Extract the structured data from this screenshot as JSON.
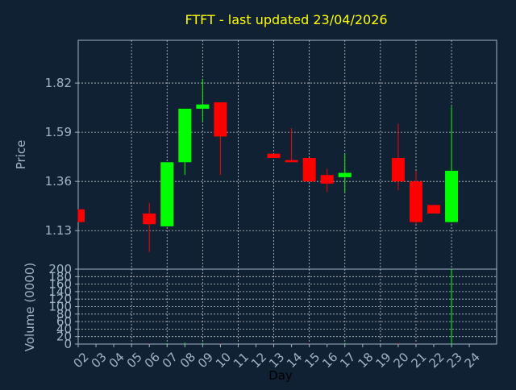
{
  "chart_data": {
    "type": "candlestick",
    "title": "FTFT - last updated 23/04/2026",
    "title_color": "#ffff00",
    "background": "#0f2133",
    "axis_color": "#a0b4c8",
    "grid_color": "#ffffff",
    "up_color": "#00ff00",
    "down_color": "#ff0000",
    "xlabel": "Day",
    "price_panel": {
      "ylabel": "Price",
      "ylim": [
        0.95,
        2.02
      ],
      "ticks": [
        1.13,
        1.36,
        1.59,
        1.82
      ],
      "tick_labels": [
        "1.13",
        "1.36",
        "1.59",
        "1.82"
      ]
    },
    "volume_panel": {
      "ylabel": "Volume (0000)",
      "ylim": [
        0,
        200
      ],
      "ticks": [
        0,
        20,
        40,
        60,
        80,
        100,
        120,
        140,
        160,
        180,
        200
      ],
      "tick_labels": [
        "0",
        "20",
        "40",
        "60",
        "80",
        "100",
        "120",
        "140",
        "160",
        "180",
        "200"
      ]
    },
    "x_ticks": [
      "02",
      "03",
      "04",
      "05",
      "06",
      "07",
      "08",
      "09",
      "10",
      "11",
      "12",
      "13",
      "14",
      "15",
      "16",
      "17",
      "18",
      "19",
      "20",
      "21",
      "22",
      "23",
      "24"
    ],
    "x_grid_days": [
      "05",
      "07",
      "09",
      "11",
      "13",
      "15",
      "17",
      "19",
      "21",
      "23"
    ],
    "candles": [
      {
        "day": "02",
        "open": 1.23,
        "high": 1.23,
        "low": 1.17,
        "close": 1.17,
        "volume": 1
      },
      {
        "day": "06",
        "open": 1.21,
        "high": 1.26,
        "low": 1.03,
        "close": 1.16,
        "volume": 2
      },
      {
        "day": "07",
        "open": 1.15,
        "high": 1.45,
        "low": 1.15,
        "close": 1.45,
        "volume": 2
      },
      {
        "day": "08",
        "open": 1.45,
        "high": 1.7,
        "low": 1.39,
        "close": 1.7,
        "volume": 4
      },
      {
        "day": "09",
        "open": 1.7,
        "high": 1.84,
        "low": 1.64,
        "close": 1.72,
        "volume": 3
      },
      {
        "day": "10",
        "open": 1.73,
        "high": 1.73,
        "low": 1.39,
        "close": 1.57,
        "volume": 2
      },
      {
        "day": "13",
        "open": 1.49,
        "high": 1.49,
        "low": 1.47,
        "close": 1.47,
        "volume": 1
      },
      {
        "day": "14",
        "open": 1.46,
        "high": 1.61,
        "low": 1.45,
        "close": 1.45,
        "volume": 1
      },
      {
        "day": "15",
        "open": 1.47,
        "high": 1.47,
        "low": 1.36,
        "close": 1.36,
        "volume": 2
      },
      {
        "day": "16",
        "open": 1.39,
        "high": 1.42,
        "low": 1.31,
        "close": 1.35,
        "volume": 1
      },
      {
        "day": "17",
        "open": 1.38,
        "high": 1.49,
        "low": 1.31,
        "close": 1.4,
        "volume": 3
      },
      {
        "day": "20",
        "open": 1.47,
        "high": 1.63,
        "low": 1.32,
        "close": 1.36,
        "volume": 3
      },
      {
        "day": "21",
        "open": 1.36,
        "high": 1.41,
        "low": 1.16,
        "close": 1.17,
        "volume": 2
      },
      {
        "day": "22",
        "open": 1.25,
        "high": 1.25,
        "low": 1.21,
        "close": 1.21,
        "volume": 1
      },
      {
        "day": "23",
        "open": 1.17,
        "high": 1.71,
        "low": 1.17,
        "close": 1.41,
        "volume": 200
      }
    ]
  }
}
